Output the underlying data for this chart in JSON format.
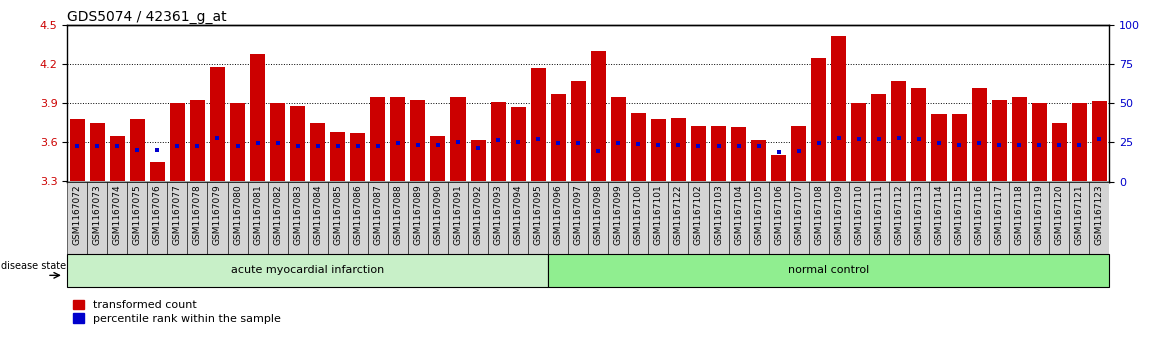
{
  "title": "GDS5074 / 42361_g_at",
  "samples": [
    "GSM1167072",
    "GSM1167073",
    "GSM1167074",
    "GSM1167075",
    "GSM1167076",
    "GSM1167077",
    "GSM1167078",
    "GSM1167079",
    "GSM1167080",
    "GSM1167081",
    "GSM1167082",
    "GSM1167083",
    "GSM1167084",
    "GSM1167085",
    "GSM1167086",
    "GSM1167087",
    "GSM1167088",
    "GSM1167089",
    "GSM1167090",
    "GSM1167091",
    "GSM1167092",
    "GSM1167093",
    "GSM1167094",
    "GSM1167095",
    "GSM1167096",
    "GSM1167097",
    "GSM1167098",
    "GSM1167099",
    "GSM1167100",
    "GSM1167101",
    "GSM1167122",
    "GSM1167102",
    "GSM1167103",
    "GSM1167104",
    "GSM1167105",
    "GSM1167106",
    "GSM1167107",
    "GSM1167108",
    "GSM1167109",
    "GSM1167110",
    "GSM1167111",
    "GSM1167112",
    "GSM1167113",
    "GSM1167114",
    "GSM1167115",
    "GSM1167116",
    "GSM1167117",
    "GSM1167118",
    "GSM1167119",
    "GSM1167120",
    "GSM1167121",
    "GSM1167123"
  ],
  "bar_values": [
    3.78,
    3.75,
    3.65,
    3.78,
    3.45,
    3.9,
    3.93,
    4.18,
    3.9,
    4.28,
    3.9,
    3.88,
    3.75,
    3.68,
    3.67,
    3.95,
    3.95,
    3.93,
    3.65,
    3.95,
    3.62,
    3.91,
    3.87,
    4.17,
    3.97,
    4.07,
    4.3,
    3.95,
    3.83,
    3.78,
    3.79,
    3.73,
    3.73,
    3.72,
    3.62,
    3.5,
    3.73,
    4.25,
    4.42,
    3.9,
    3.97,
    4.07,
    4.02,
    3.82,
    3.82,
    4.02,
    3.93,
    3.95,
    3.9,
    3.75,
    3.9,
    3.92
  ],
  "percentile_values": [
    3.575,
    3.573,
    3.573,
    3.545,
    3.545,
    3.57,
    3.575,
    3.638,
    3.575,
    3.595,
    3.595,
    3.575,
    3.575,
    3.575,
    3.575,
    3.575,
    3.595,
    3.58,
    3.58,
    3.6,
    3.555,
    3.62,
    3.6,
    3.625,
    3.595,
    3.595,
    3.538,
    3.595,
    3.585,
    3.578,
    3.578,
    3.572,
    3.572,
    3.572,
    3.572,
    3.525,
    3.538,
    3.595,
    3.638,
    3.628,
    3.628,
    3.638,
    3.628,
    3.595,
    3.578,
    3.595,
    3.578,
    3.578,
    3.578,
    3.578,
    3.578,
    3.628
  ],
  "group_labels": [
    "acute myocardial infarction",
    "normal control"
  ],
  "group_sizes": [
    24,
    28
  ],
  "group_colors": [
    "#c8f0c8",
    "#90ee90"
  ],
  "ylim_left": [
    3.3,
    4.5
  ],
  "ylim_right": [
    0,
    100
  ],
  "yticks_left": [
    3.3,
    3.6,
    3.9,
    4.2,
    4.5
  ],
  "yticks_right": [
    0,
    25,
    50,
    75,
    100
  ],
  "bar_color": "#cc0000",
  "marker_color": "#0000cc",
  "tick_bg_color": "#d4d4d4",
  "plot_bg": "#ffffff",
  "title_fontsize": 10,
  "tick_fontsize": 6.5,
  "label_fontsize": 8,
  "disease_state_label": "disease state"
}
